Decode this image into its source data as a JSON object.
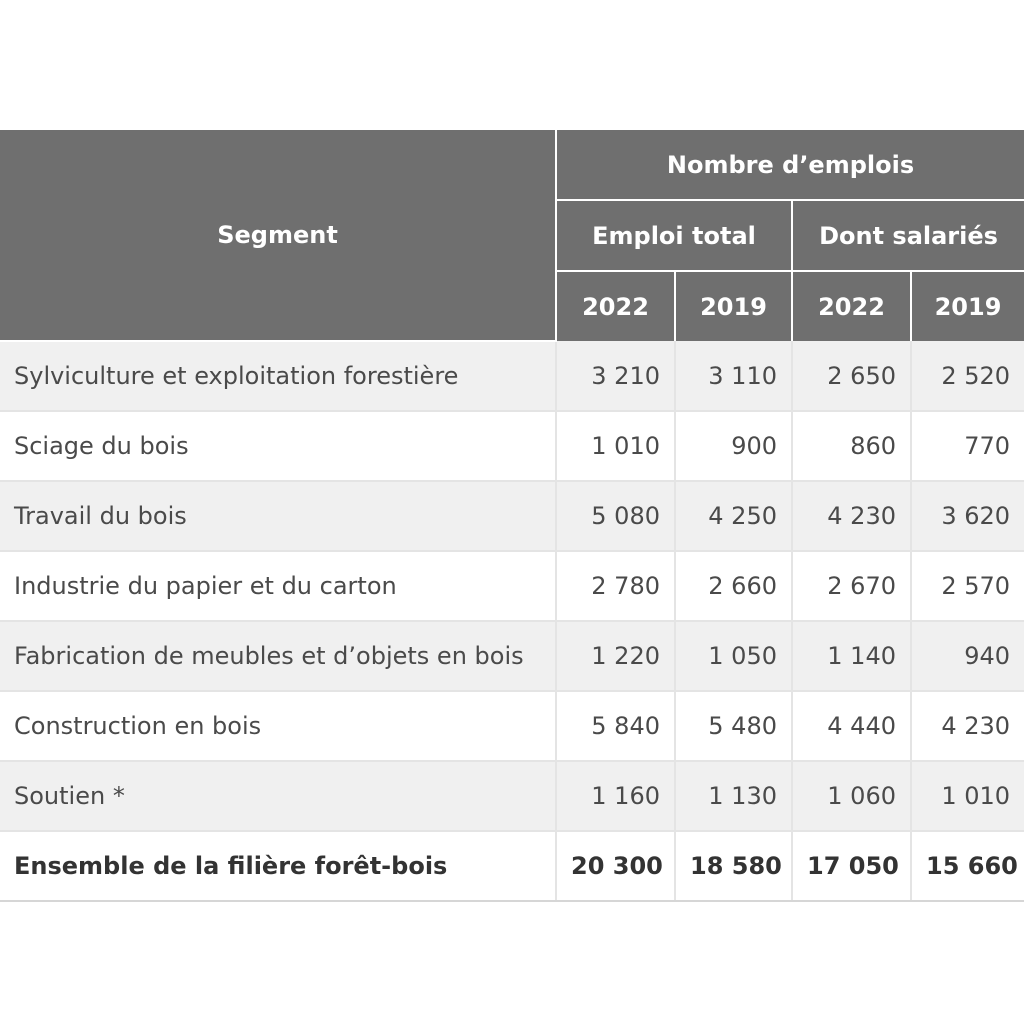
{
  "colors": {
    "header_bg": "#6f6f6f",
    "header_text": "#ffffff",
    "row_shaded": "#f0f0f0",
    "row_plain": "#ffffff",
    "body_text": "#4a4a4a"
  },
  "table": {
    "segment_header": "Segment",
    "group_header": "Nombre d’emplois",
    "subgroups": [
      "Emploi total",
      "Dont salariés"
    ],
    "years": [
      "2022",
      "2019",
      "2022",
      "2019"
    ],
    "rows": [
      {
        "segment": "Sylviculture et exploitation forestière",
        "values": [
          "3 210",
          "3 110",
          "2 650",
          "2 520"
        ]
      },
      {
        "segment": "Sciage du bois",
        "values": [
          "1 010",
          "900",
          "860",
          "770"
        ]
      },
      {
        "segment": "Travail du bois",
        "values": [
          "5 080",
          "4 250",
          "4 230",
          "3 620"
        ]
      },
      {
        "segment": "Industrie du papier et du carton",
        "values": [
          "2 780",
          "2 660",
          "2 670",
          "2 570"
        ]
      },
      {
        "segment": "Fabrication de meubles et d’objets en bois",
        "values": [
          "1 220",
          "1 050",
          "1 140",
          "940"
        ]
      },
      {
        "segment": "Construction en bois",
        "values": [
          "5 840",
          "5 480",
          "4 440",
          "4 230"
        ]
      },
      {
        "segment": "Soutien *",
        "values": [
          "1 160",
          "1 130",
          "1 060",
          "1 010"
        ]
      }
    ],
    "total": {
      "segment": "Ensemble de la filière forêt-bois",
      "values": [
        "20 300",
        "18 580",
        "17 050",
        "15 660"
      ]
    }
  }
}
